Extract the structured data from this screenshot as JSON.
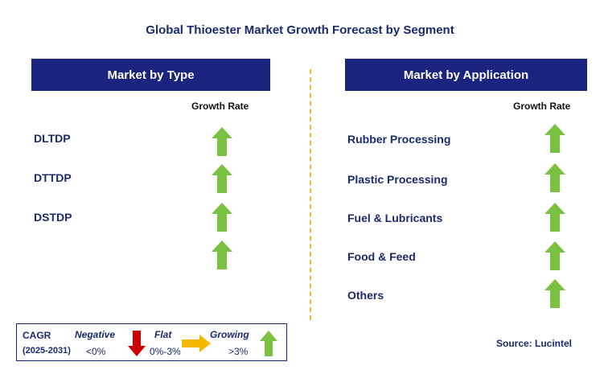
{
  "title": "Global Thioester Market Growth Forecast by Segment",
  "colors": {
    "header_bg": "#1a237e",
    "growing": "#7ac142",
    "negative": "#cc0000",
    "flat": "#f5b800",
    "divider": "#f2b632"
  },
  "type_panel": {
    "header": "Market by Type",
    "column_label": "Growth Rate",
    "rows": [
      {
        "label": "DLTDP",
        "trend": "growing"
      },
      {
        "label": "DTTDP",
        "trend": "growing"
      },
      {
        "label": "DSTDP",
        "trend": "growing"
      },
      {
        "label": "",
        "trend": "growing"
      }
    ]
  },
  "application_panel": {
    "header": "Market by Application",
    "column_label": "Growth Rate",
    "rows": [
      {
        "label": "Rubber Processing",
        "trend": "growing"
      },
      {
        "label": "Plastic Processing",
        "trend": "growing"
      },
      {
        "label": "Fuel & Lubricants",
        "trend": "growing"
      },
      {
        "label": "Food & Feed",
        "trend": "growing"
      },
      {
        "label": "Others",
        "trend": "growing"
      }
    ]
  },
  "legend": {
    "cagr_label": "CAGR",
    "period": "(2025-2031)",
    "negative_label": "Negative",
    "negative_range": "<0%",
    "flat_label": "Flat",
    "flat_range": "0%-3%",
    "growing_label": "Growing",
    "growing_range": ">3%"
  },
  "source": "Source: Lucintel"
}
